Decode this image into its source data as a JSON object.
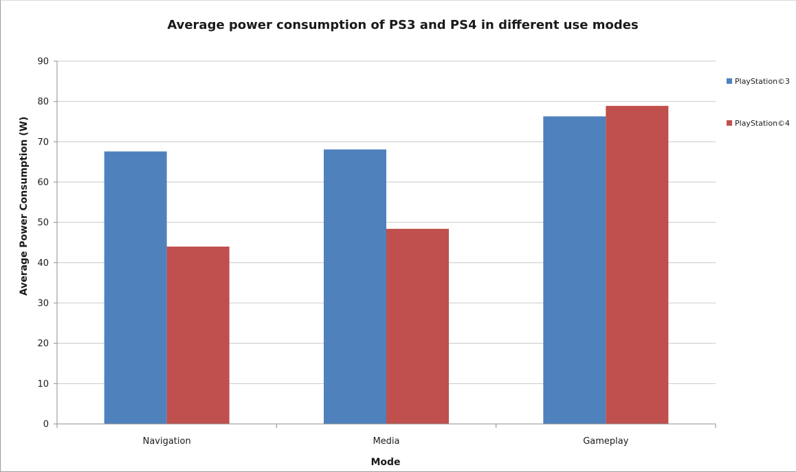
{
  "chart_data": {
    "type": "bar",
    "title": "Average power consumption of PS3 and PS4 in different use modes",
    "xlabel": "Mode",
    "ylabel": "Average Power Consumption (W)",
    "categories": [
      "Navigation",
      "Media",
      "Gameplay"
    ],
    "series": [
      {
        "name": "PlayStation©3",
        "values": [
          67.6,
          68.1,
          76.3
        ],
        "color": "#4f81bd"
      },
      {
        "name": "PlayStation©4",
        "values": [
          44.0,
          48.4,
          78.9
        ],
        "color": "#c0504d"
      }
    ],
    "ylim": [
      0,
      90
    ],
    "yticks": [
      0,
      10,
      20,
      30,
      40,
      50,
      60,
      70,
      80,
      90
    ],
    "grid": true,
    "legend": "right"
  }
}
